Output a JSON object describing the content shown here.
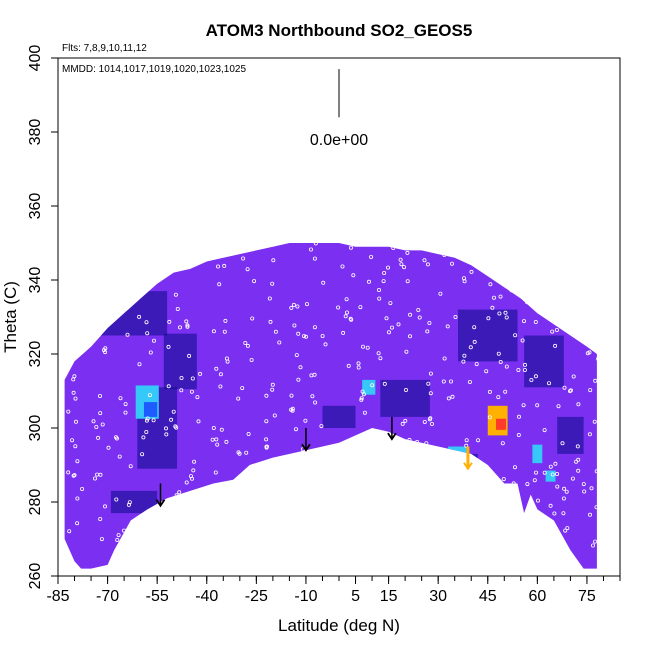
{
  "chart_data": {
    "type": "heatmap",
    "title": "ATOM3 Northbound SO2_GEOS5",
    "subtitle_flights": "Flts: 7,8,9,10,11,12",
    "subtitle_dates": "MMDD: 1014,1017,1019,1020,1023,1025",
    "xlabel": "Latitude (deg N)",
    "ylabel": "Theta (C)",
    "xlim": [
      -85,
      85
    ],
    "ylim": [
      260,
      400
    ],
    "xticks": [
      -85,
      -70,
      -55,
      -40,
      -25,
      -10,
      5,
      15,
      30,
      45,
      60,
      75
    ],
    "yticks": [
      260,
      280,
      300,
      320,
      340,
      360,
      380,
      400
    ],
    "legend_value": "0.0e+00",
    "colors": {
      "background_fill": "#7b2ff0",
      "low": "#0a0a8a",
      "mid": "#1e5cff",
      "cyan": "#36c8f8",
      "high": "#ff3a2a",
      "orange": "#ffb000"
    },
    "field_top": [
      [
        -83,
        313
      ],
      [
        -80,
        318
      ],
      [
        -75,
        322
      ],
      [
        -70,
        327
      ],
      [
        -65,
        331
      ],
      [
        -60,
        335
      ],
      [
        -55,
        339
      ],
      [
        -50,
        342
      ],
      [
        -45,
        343
      ],
      [
        -40,
        345
      ],
      [
        -35,
        346
      ],
      [
        -30,
        347
      ],
      [
        -25,
        348
      ],
      [
        -20,
        349
      ],
      [
        -15,
        350
      ],
      [
        -10,
        350
      ],
      [
        -5,
        350
      ],
      [
        0,
        350
      ],
      [
        5,
        349
      ],
      [
        10,
        349
      ],
      [
        15,
        349
      ],
      [
        20,
        348
      ],
      [
        25,
        348
      ],
      [
        30,
        347
      ],
      [
        35,
        346
      ],
      [
        40,
        344
      ],
      [
        45,
        341
      ],
      [
        50,
        338
      ],
      [
        55,
        335
      ],
      [
        60,
        331
      ],
      [
        65,
        328
      ],
      [
        70,
        325
      ],
      [
        75,
        322
      ],
      [
        78,
        320
      ]
    ],
    "field_bottom": [
      [
        78,
        262
      ],
      [
        74,
        262
      ],
      [
        70,
        267
      ],
      [
        65,
        275
      ],
      [
        60,
        278
      ],
      [
        58,
        282
      ],
      [
        56,
        277
      ],
      [
        54,
        285
      ],
      [
        50,
        285
      ],
      [
        45,
        290
      ],
      [
        40,
        293
      ],
      [
        30,
        295
      ],
      [
        20,
        297
      ],
      [
        15,
        299
      ],
      [
        10,
        300
      ],
      [
        5,
        298
      ],
      [
        0,
        296
      ],
      [
        -10,
        294
      ],
      [
        -20,
        292
      ],
      [
        -27,
        290
      ],
      [
        -32,
        286
      ],
      [
        -38,
        285
      ],
      [
        -45,
        283
      ],
      [
        -52,
        281
      ],
      [
        -58,
        278
      ],
      [
        -63,
        275
      ],
      [
        -68,
        267
      ],
      [
        -70,
        263
      ],
      [
        -75,
        262
      ],
      [
        -78,
        262
      ],
      [
        -80,
        264
      ],
      [
        -83,
        270
      ]
    ],
    "hotspots": [
      {
        "x": -58,
        "y": 307,
        "w": 7,
        "h": 9,
        "level": "cyan"
      },
      {
        "x": -57,
        "y": 305,
        "w": 4,
        "h": 4,
        "level": "mid"
      },
      {
        "x": 48,
        "y": 302,
        "w": 6,
        "h": 8,
        "level": "orange"
      },
      {
        "x": 49,
        "y": 301,
        "w": 3,
        "h": 3,
        "level": "high"
      },
      {
        "x": 36,
        "y": 293,
        "w": 6,
        "h": 4,
        "level": "cyan"
      },
      {
        "x": 9,
        "y": 311,
        "w": 4,
        "h": 4,
        "level": "cyan"
      },
      {
        "x": 60,
        "y": 293,
        "w": 3,
        "h": 5,
        "level": "cyan"
      },
      {
        "x": 64,
        "y": 287,
        "w": 3,
        "h": 3,
        "level": "cyan"
      }
    ],
    "dark_patches": [
      {
        "x": -62,
        "y": 331,
        "w": 20,
        "h": 12
      },
      {
        "x": -55,
        "y": 300,
        "w": 12,
        "h": 22
      },
      {
        "x": -48,
        "y": 318,
        "w": 10,
        "h": 15
      },
      {
        "x": -62,
        "y": 280,
        "w": 14,
        "h": 6
      },
      {
        "x": 20,
        "y": 308,
        "w": 15,
        "h": 10
      },
      {
        "x": 45,
        "y": 325,
        "w": 18,
        "h": 14
      },
      {
        "x": 62,
        "y": 318,
        "w": 12,
        "h": 14
      },
      {
        "x": 70,
        "y": 298,
        "w": 8,
        "h": 10
      },
      {
        "x": 35,
        "y": 290,
        "w": 14,
        "h": 6
      },
      {
        "x": 0,
        "y": 303,
        "w": 10,
        "h": 6
      }
    ],
    "arrows": [
      {
        "x": -54,
        "y_top": 285,
        "y_bottom": 279,
        "color": "#000000"
      },
      {
        "x": -10,
        "y_top": 300,
        "y_bottom": 294,
        "color": "#000000"
      },
      {
        "x": 16,
        "y_top": 303,
        "y_bottom": 297,
        "color": "#000000"
      },
      {
        "x": 39,
        "y_top": 295,
        "y_bottom": 289,
        "color": "#ffb000"
      }
    ],
    "legend_arrow": {
      "x": 0,
      "y_top": 397,
      "y_bottom": 384
    }
  }
}
